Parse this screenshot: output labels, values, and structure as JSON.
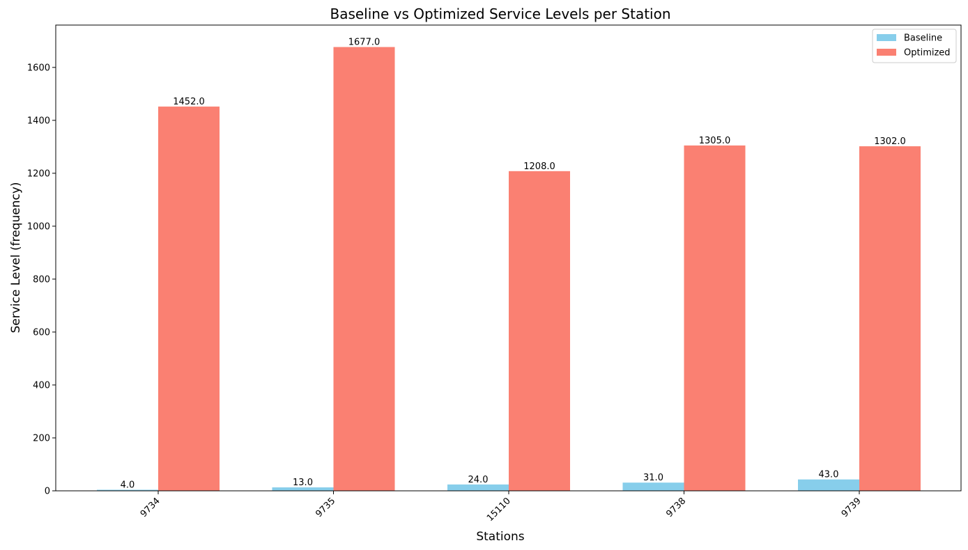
{
  "chart_data": {
    "type": "bar",
    "title": "Baseline vs Optimized Service Levels per Station",
    "xlabel": "Stations",
    "ylabel": "Service Level (frequency)",
    "categories": [
      "9734",
      "9735",
      "15110",
      "9738",
      "9739"
    ],
    "series": [
      {
        "name": "Baseline",
        "values": [
          4.0,
          13.0,
          24.0,
          31.0,
          43.0
        ],
        "labels": [
          "4.0",
          "13.0",
          "24.0",
          "31.0",
          "43.0"
        ],
        "color": "#87ceeb"
      },
      {
        "name": "Optimized",
        "values": [
          1452.0,
          1677.0,
          1208.0,
          1305.0,
          1302.0
        ],
        "labels": [
          "1452.0",
          "1677.0",
          "1208.0",
          "1305.0",
          "1302.0"
        ],
        "color": "#fa8072"
      }
    ],
    "ylim": [
      0,
      1760
    ],
    "yticks": [
      0,
      200,
      400,
      600,
      800,
      1000,
      1200,
      1400,
      1600
    ],
    "grid": false,
    "legend": "top-right"
  }
}
